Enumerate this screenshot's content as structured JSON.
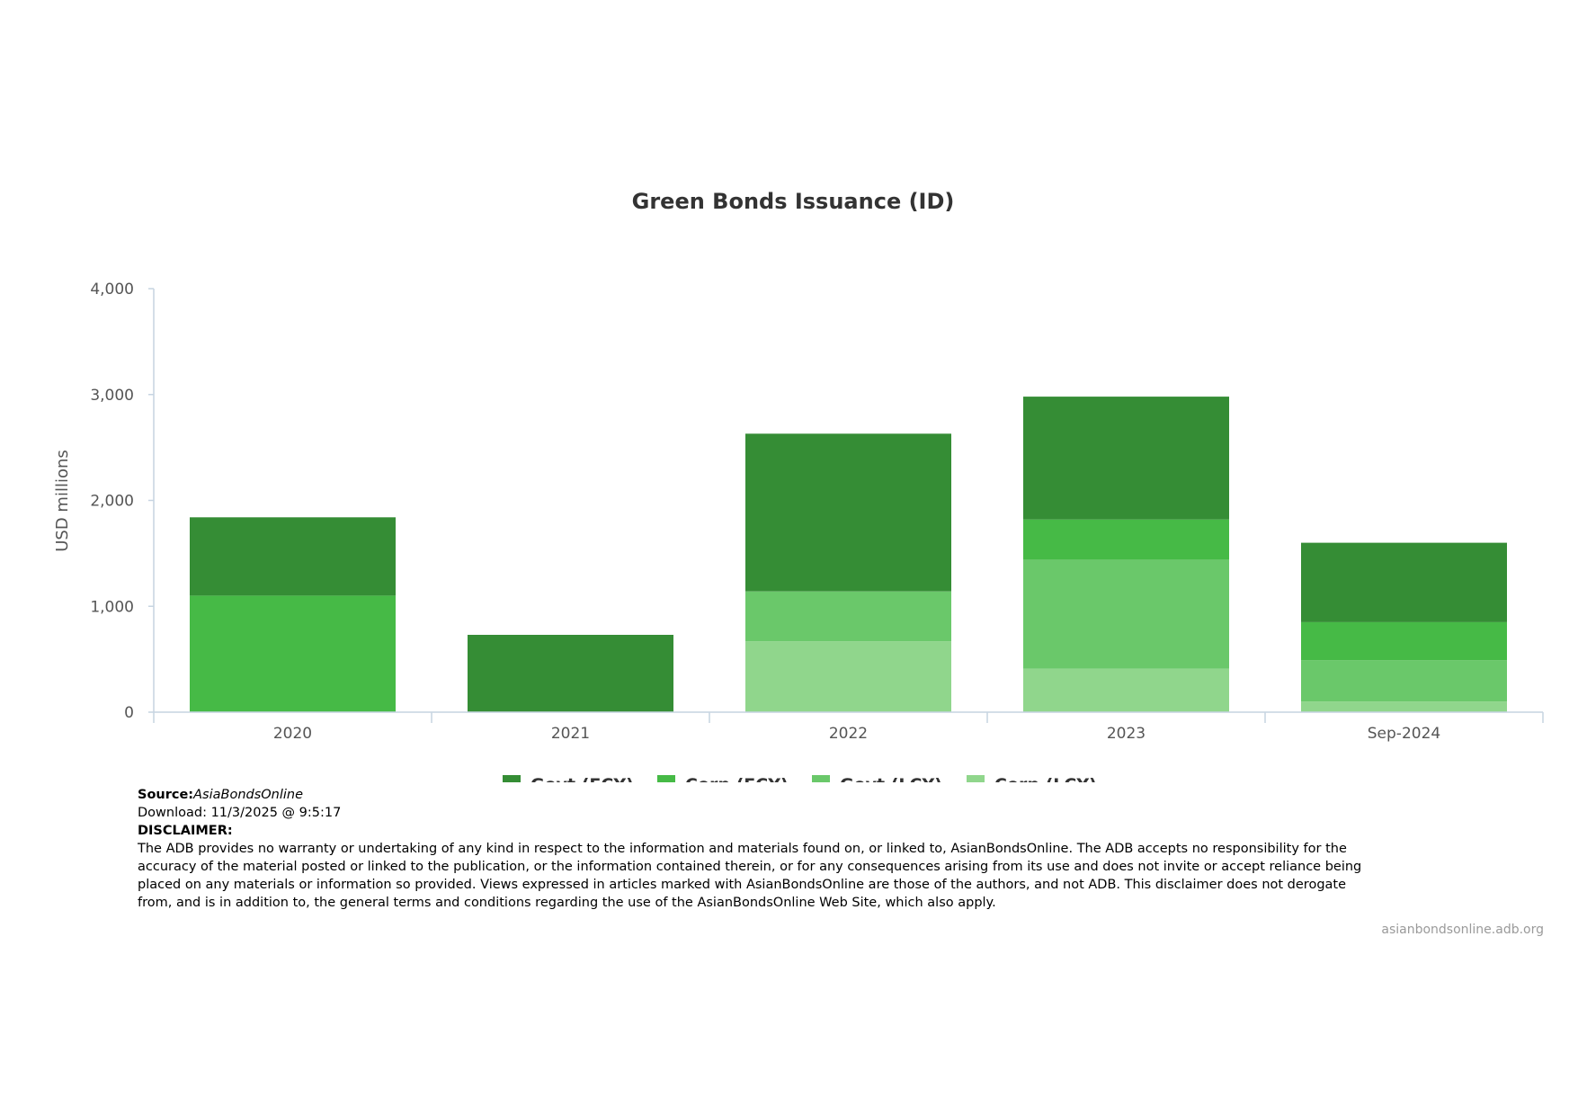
{
  "colors": {
    "govt_fcy": "#358d35",
    "corp_fcy": "#46ba46",
    "govt_lcy": "#6ac86a",
    "corp_lcy": "#90d68c",
    "axis": "#c6d4e1",
    "tick_text": "#555555",
    "title_text": "#333333"
  },
  "chart_data": {
    "type": "bar",
    "stacked": true,
    "title": "Green Bonds Issuance (ID)",
    "ylabel": "USD millions",
    "xlabel": "",
    "ylim": [
      0,
      4000
    ],
    "yticks": [
      0,
      1000,
      2000,
      3000,
      4000
    ],
    "ytick_labels": [
      "0",
      "1,000",
      "2,000",
      "3,000",
      "4,000"
    ],
    "categories": [
      "2020",
      "2021",
      "2022",
      "2023",
      "Sep-2024"
    ],
    "series": [
      {
        "name": "Govt (FCY)",
        "color_key": "govt_fcy",
        "values": [
          740,
          730,
          1490,
          1160,
          750
        ]
      },
      {
        "name": "Corp (FCY)",
        "color_key": "corp_fcy",
        "values": [
          1100,
          0,
          0,
          380,
          360
        ]
      },
      {
        "name": "Govt (LCY)",
        "color_key": "govt_lcy",
        "values": [
          0,
          0,
          470,
          1030,
          390
        ]
      },
      {
        "name": "Corp (LCY)",
        "color_key": "corp_lcy",
        "values": [
          0,
          0,
          670,
          410,
          100
        ]
      }
    ],
    "legend_position": "bottom-center",
    "grid": false
  },
  "footer": {
    "source_label": "Source:",
    "source_name": "AsiaBondsOnline",
    "download_text": "Download: 11/3/2025 @ 9:5:17",
    "disclaimer_label": "DISCLAIMER:",
    "disclaimer_text": "The ADB provides no warranty or undertaking of any kind in respect to the information and materials found on, or linked to, AsianBondsOnline. The ADB accepts no responsibility for the accuracy of the material posted or linked to the publication, or the information contained therein, or for any consequences arising from its use and does not invite or accept reliance being placed on any materials or information so provided. Views expressed in articles marked with AsianBondsOnline are those of the authors, and not ADB. This disclaimer does not derogate from, and is in addition to, the general terms and conditions regarding the use of the AsianBondsOnline Web Site, which also apply.",
    "credit": "asianbondsonline.adb.org"
  }
}
